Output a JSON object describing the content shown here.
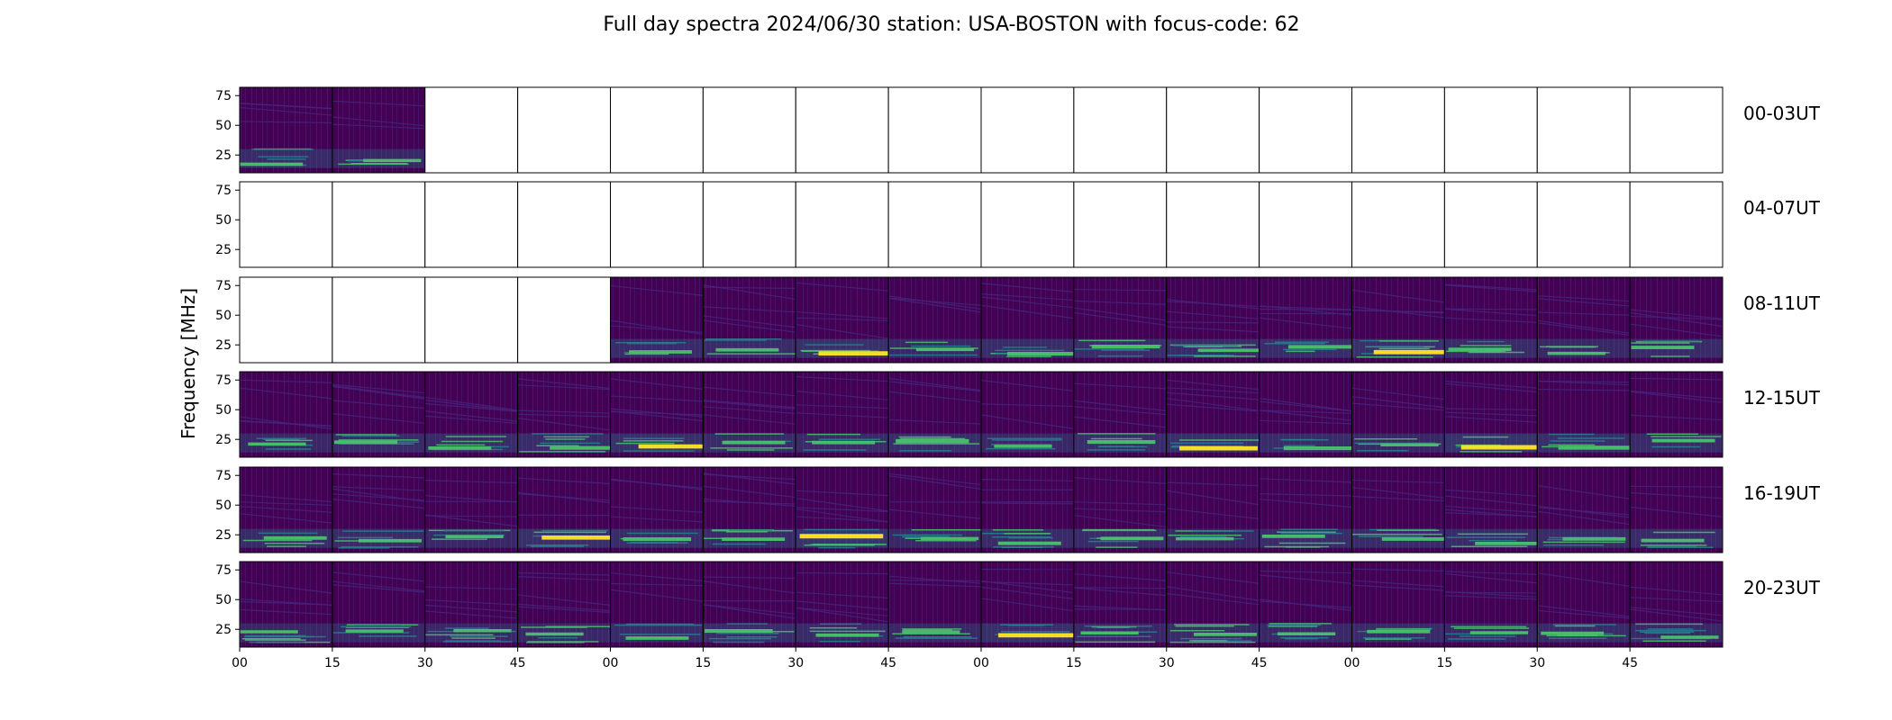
{
  "chart_data": {
    "type": "heatmap",
    "title": "Full day spectra 2024/06/30 station: USA-BOSTON with focus-code: 62",
    "ylabel": "Frequency [MHz]",
    "xlabel": "",
    "ylim": [
      10,
      82
    ],
    "yticks": [
      25,
      50,
      75
    ],
    "xtick_labels": [
      "00",
      "15",
      "30",
      "45",
      "00",
      "15",
      "30",
      "45",
      "00",
      "15",
      "30",
      "45",
      "00",
      "15",
      "30",
      "45"
    ],
    "row_labels": [
      "00-03UT",
      "04-07UT",
      "08-11UT",
      "12-15UT",
      "16-19UT",
      "20-23UT"
    ],
    "panels_per_row": 16,
    "panel_minutes": 15,
    "colormap": "viridis",
    "colors": {
      "background": "#440154",
      "low": "#46237a",
      "mid": "#277f8e",
      "high": "#4ac16d",
      "peak": "#fde725"
    },
    "data_available": [
      [
        1,
        1,
        0,
        0,
        0,
        0,
        0,
        0,
        0,
        0,
        0,
        0,
        0,
        0,
        0,
        0
      ],
      [
        0,
        0,
        0,
        0,
        0,
        0,
        0,
        0,
        0,
        0,
        0,
        0,
        0,
        0,
        0,
        0
      ],
      [
        0,
        0,
        0,
        0,
        1,
        1,
        1,
        1,
        1,
        1,
        1,
        1,
        1,
        1,
        1,
        1
      ],
      [
        1,
        1,
        1,
        1,
        1,
        1,
        1,
        1,
        1,
        1,
        1,
        1,
        1,
        1,
        1,
        1
      ],
      [
        1,
        1,
        1,
        1,
        1,
        1,
        1,
        1,
        1,
        1,
        1,
        1,
        1,
        1,
        1,
        1
      ],
      [
        1,
        1,
        1,
        1,
        1,
        1,
        1,
        1,
        1,
        1,
        1,
        1,
        1,
        1,
        1,
        1
      ]
    ],
    "emission_band_mhz": [
      14,
      30
    ],
    "peak_intensity": [
      [
        0.6,
        0.5,
        0,
        0,
        0,
        0,
        0,
        0,
        0,
        0,
        0,
        0,
        0,
        0,
        0,
        0
      ],
      [
        0,
        0,
        0,
        0,
        0,
        0,
        0,
        0,
        0,
        0,
        0,
        0,
        0,
        0,
        0,
        0
      ],
      [
        0,
        0,
        0,
        0,
        0.6,
        0.6,
        0.9,
        0.5,
        0.7,
        0.7,
        0.6,
        0.7,
        0.9,
        0.6,
        0.5,
        0.6
      ],
      [
        0.5,
        0.6,
        0.6,
        0.7,
        0.9,
        0.6,
        0.6,
        0.8,
        0.5,
        0.7,
        0.9,
        0.7,
        0.5,
        1.0,
        0.8,
        0.6
      ],
      [
        0.6,
        0.6,
        0.5,
        0.9,
        0.7,
        0.6,
        1.0,
        0.5,
        0.6,
        0.6,
        0.5,
        0.6,
        0.6,
        0.6,
        0.6,
        0.6
      ],
      [
        0.5,
        0.5,
        0.5,
        0.5,
        0.6,
        0.7,
        0.6,
        0.5,
        0.9,
        0.5,
        0.6,
        0.5,
        0.6,
        0.5,
        0.6,
        0.5
      ]
    ]
  }
}
